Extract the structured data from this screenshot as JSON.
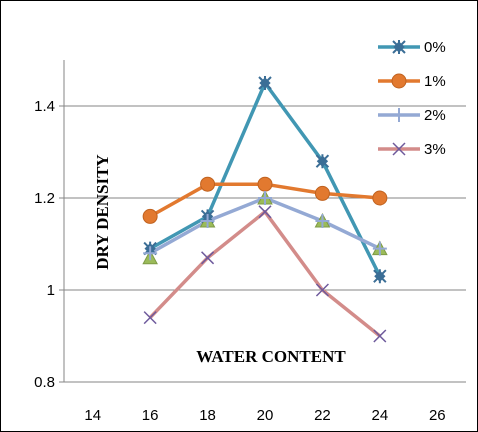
{
  "chart_data": {
    "type": "line",
    "title": "",
    "xlabel": "WATER CONTENT",
    "ylabel": "DRY DENSITY",
    "x": [
      16,
      18,
      20,
      22,
      24
    ],
    "xlim": [
      13,
      27
    ],
    "ylim": [
      0.8,
      1.5
    ],
    "xticks": [
      "14",
      "16",
      "18",
      "20",
      "22",
      "24",
      "26"
    ],
    "yticks": [
      "0.8",
      "1",
      "1.2",
      "1.4"
    ],
    "grid": "horizontal",
    "legend_position": "top-right",
    "series": [
      {
        "name": "0%",
        "color": "#4197b3",
        "marker": "star",
        "values": [
          1.09,
          1.16,
          1.45,
          1.28,
          1.03
        ]
      },
      {
        "name": "1%",
        "color": "#e2792f",
        "marker": "circle",
        "values": [
          1.16,
          1.23,
          1.23,
          1.21,
          1.2
        ]
      },
      {
        "name": "2%",
        "color": "#94a9d4",
        "marker": "plus",
        "values": [
          1.08,
          1.15,
          1.2,
          1.15,
          1.09
        ]
      },
      {
        "name": "3%",
        "color": "#d38c8a",
        "marker": "cross",
        "values": [
          0.94,
          1.07,
          1.17,
          1.0,
          0.9
        ]
      }
    ],
    "extra_markers": {
      "name": "green-triangles",
      "color": "#9bbb59",
      "marker": "triangle",
      "x": [
        16,
        18,
        20,
        22,
        24
      ],
      "values": [
        1.07,
        1.15,
        1.2,
        1.15,
        1.09
      ]
    }
  }
}
